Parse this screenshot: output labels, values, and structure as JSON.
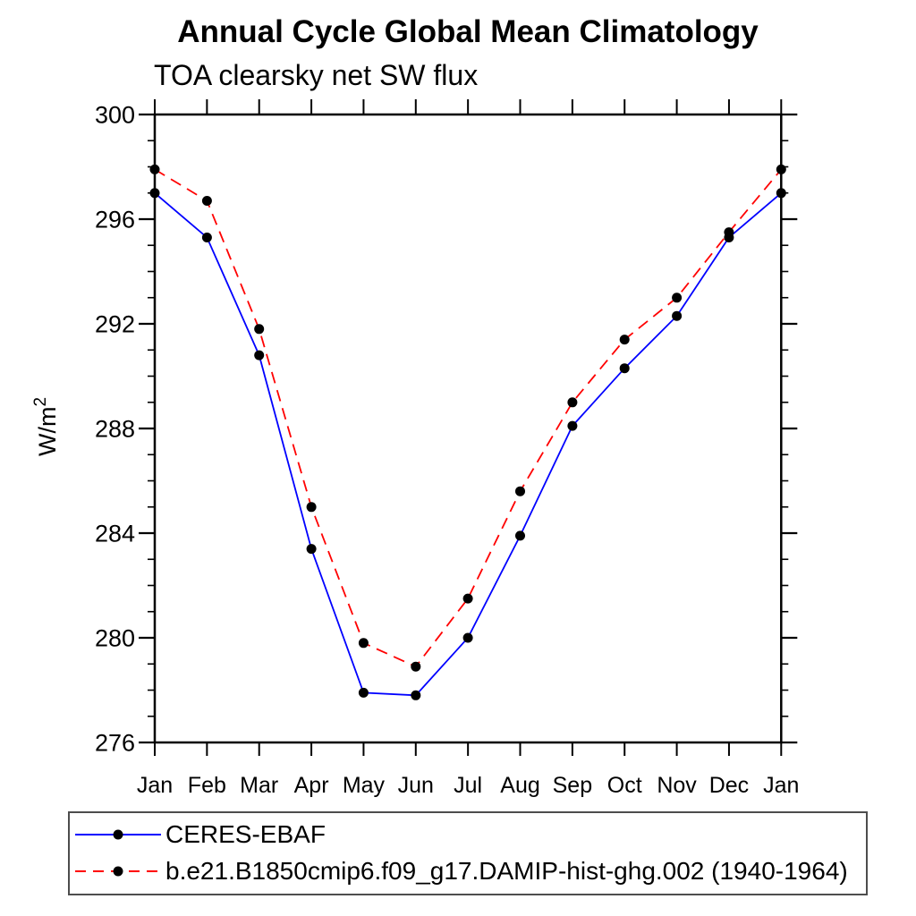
{
  "page": {
    "background": "#ffffff"
  },
  "chart_data": {
    "type": "line",
    "title": "Annual Cycle Global Mean Climatology",
    "subtitle": "TOA clearsky net SW flux",
    "ylabel_base": "W/m",
    "ylabel_superscript": "2",
    "categories": [
      "Jan",
      "Feb",
      "Mar",
      "Apr",
      "May",
      "Jun",
      "Jul",
      "Aug",
      "Sep",
      "Oct",
      "Nov",
      "Dec",
      "Jan"
    ],
    "ylim": [
      276,
      300
    ],
    "yticks_major": [
      276,
      280,
      284,
      288,
      292,
      296,
      300
    ],
    "ytick_minor_step": 1,
    "grid": false,
    "legend_position": "bottom-left-box",
    "axis_color": "#000000",
    "series": [
      {
        "name": "CERES-EBAF",
        "color": "#0000ff",
        "line_style": "solid",
        "marker": "filled-circle",
        "marker_color": "#000000",
        "values": [
          297.0,
          295.3,
          290.8,
          283.4,
          277.9,
          277.8,
          280.0,
          283.9,
          288.1,
          290.3,
          292.3,
          295.3,
          297.0
        ]
      },
      {
        "name": "b.e21.B1850cmip6.f09_g17.DAMIP-hist-ghg.002 (1940-1964)",
        "color": "#ff0000",
        "line_style": "dashed",
        "marker": "filled-circle",
        "marker_color": "#000000",
        "values": [
          297.9,
          296.7,
          291.8,
          285.0,
          279.8,
          278.9,
          281.5,
          285.6,
          289.0,
          291.4,
          293.0,
          295.5,
          297.9
        ]
      }
    ]
  }
}
